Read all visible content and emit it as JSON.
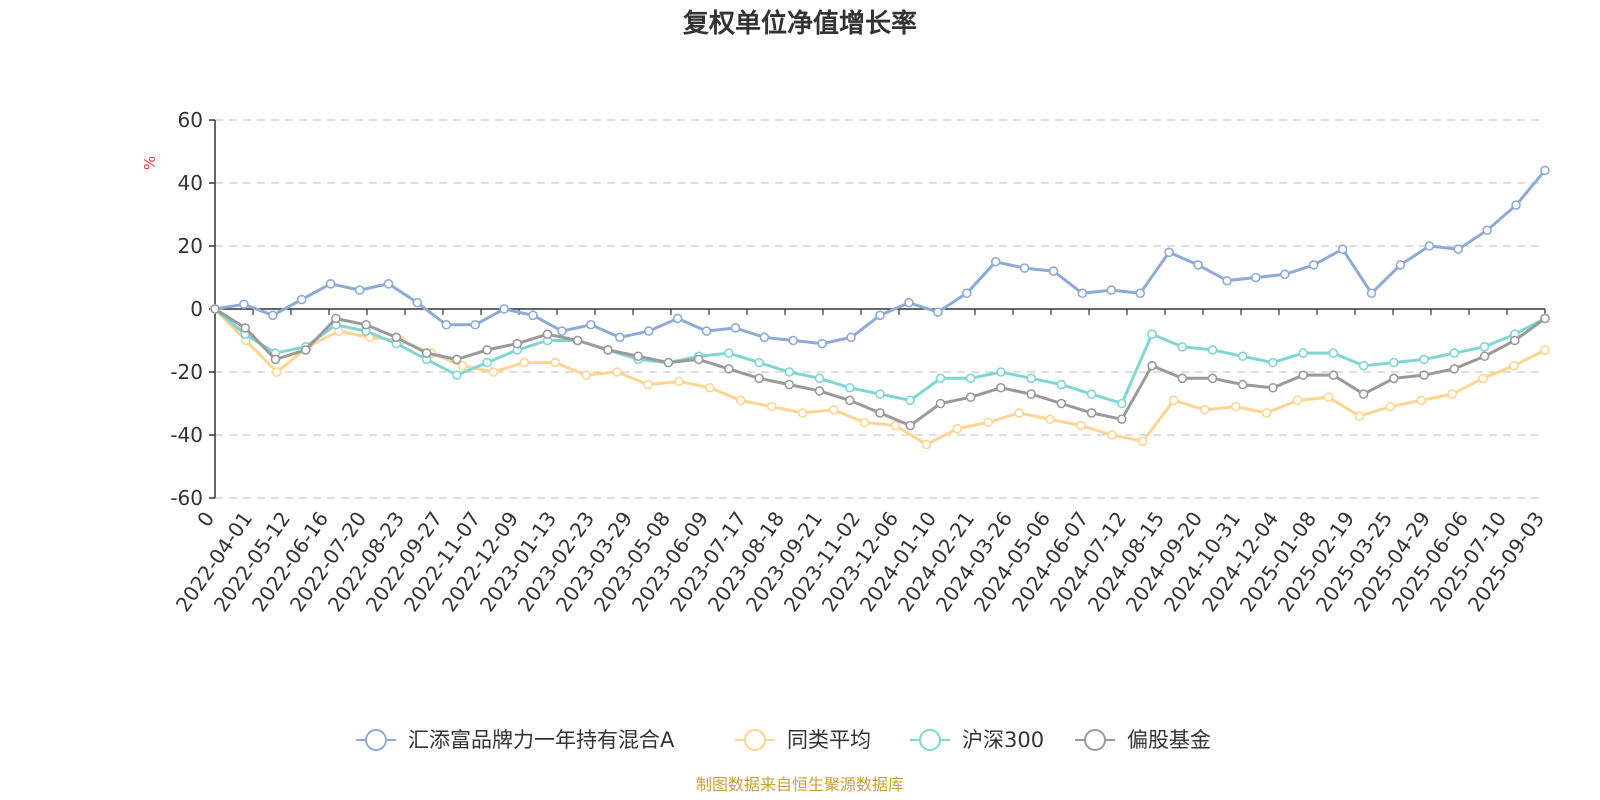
{
  "chart_data": {
    "type": "line",
    "title": "复权单位净值增长率",
    "ylabel": "%",
    "ylim": [
      -60,
      60
    ],
    "yticks": [
      -60,
      -40,
      -20,
      0,
      20,
      40,
      60
    ],
    "x_tick_labels": [
      "0",
      "2022-04-01",
      "2022-05-12",
      "2022-06-16",
      "2022-07-20",
      "2022-08-23",
      "2022-09-27",
      "2022-11-07",
      "2022-12-09",
      "2023-01-13",
      "2023-02-23",
      "2023-03-29",
      "2023-05-08",
      "2023-06-09",
      "2023-07-17",
      "2023-08-18",
      "2023-09-21",
      "2023-11-02",
      "2023-12-06",
      "2024-01-10",
      "2024-02-21",
      "2024-03-26",
      "2024-05-06",
      "2024-06-07",
      "2024-07-12",
      "2024-08-15",
      "2024-09-20",
      "2024-10-31",
      "2024-12-04",
      "2025-01-08",
      "2025-02-19",
      "2025-03-25",
      "2025-04-29",
      "2025-06-06",
      "2025-07-10",
      "2025-09-03"
    ],
    "grid": true,
    "legend_position": "bottom",
    "source_note": "制图数据来自恒生聚源数据库",
    "series": [
      {
        "name": "汇添富品牌力一年持有混合A",
        "color": "#8eaad8",
        "values": [
          0,
          1.5,
          -2,
          3,
          8,
          6,
          8,
          2,
          -5,
          -5,
          0,
          -2,
          -7,
          -5,
          -9,
          -7,
          -3,
          -7,
          -6,
          -9,
          -10,
          -11,
          -9,
          -2,
          2,
          -1,
          5,
          15,
          13,
          12,
          5,
          6,
          5,
          18,
          14,
          9,
          10,
          11,
          14,
          19,
          5,
          14,
          20,
          19,
          25,
          33,
          44
        ]
      },
      {
        "name": "同类平均",
        "color": "#fcd592",
        "values": [
          0,
          -10,
          -20,
          -12,
          -7,
          -9,
          -10,
          -14,
          -18,
          -20,
          -17,
          -17,
          -21,
          -20,
          -24,
          -23,
          -25,
          -29,
          -31,
          -33,
          -32,
          -36,
          -37,
          -43,
          -38,
          -36,
          -33,
          -35,
          -37,
          -40,
          -42,
          -29,
          -32,
          -31,
          -33,
          -29,
          -28,
          -34,
          -31,
          -29,
          -27,
          -22,
          -18,
          -13
        ]
      },
      {
        "name": "沪深300",
        "color": "#7fd6d3",
        "values": [
          0,
          -8,
          -14,
          -12,
          -5,
          -7,
          -11,
          -16,
          -21,
          -17,
          -13,
          -10,
          -10,
          -13,
          -16,
          -17,
          -15,
          -14,
          -17,
          -20,
          -22,
          -25,
          -27,
          -29,
          -22,
          -22,
          -20,
          -22,
          -24,
          -27,
          -30,
          -8,
          -12,
          -13,
          -15,
          -17,
          -14,
          -14,
          -18,
          -17,
          -16,
          -14,
          -12,
          -8,
          -3
        ]
      },
      {
        "name": "偏股基金",
        "color": "#9a9a9a",
        "values": [
          0,
          -6,
          -16,
          -13,
          -3,
          -5,
          -9,
          -14,
          -16,
          -13,
          -11,
          -8,
          -10,
          -13,
          -15,
          -17,
          -16,
          -19,
          -22,
          -24,
          -26,
          -29,
          -33,
          -37,
          -30,
          -28,
          -25,
          -27,
          -30,
          -33,
          -35,
          -18,
          -22,
          -22,
          -24,
          -25,
          -21,
          -21,
          -27,
          -22,
          -21,
          -19,
          -15,
          -10,
          -3
        ]
      }
    ]
  }
}
